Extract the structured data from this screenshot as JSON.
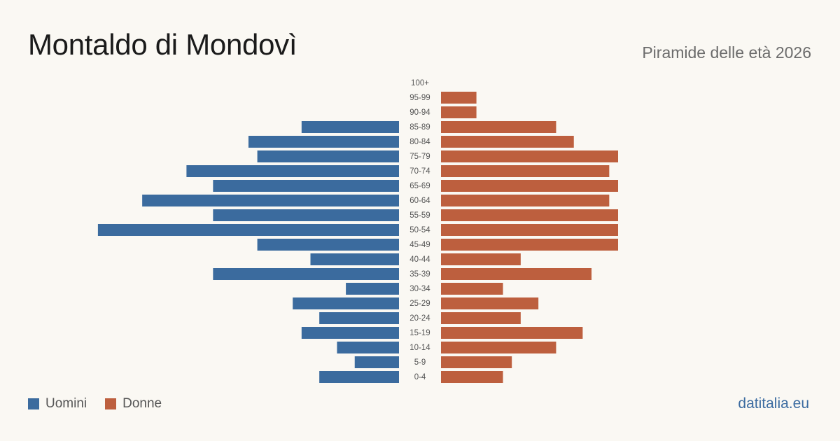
{
  "title": "Montaldo di Mondovì",
  "subtitle": "Piramide delle età 2026",
  "brand": "datitalia.eu",
  "colors": {
    "men": "#3b6b9e",
    "women": "#bd5f3e"
  },
  "chart_data": {
    "type": "bar",
    "orientation": "horizontal-pyramid",
    "title": "Montaldo di Mondovì",
    "subtitle": "Piramide delle età 2026",
    "categories": [
      "100+",
      "95-99",
      "90-94",
      "85-89",
      "80-84",
      "75-79",
      "70-74",
      "65-69",
      "60-64",
      "55-59",
      "50-54",
      "45-49",
      "40-44",
      "35-39",
      "30-34",
      "25-29",
      "20-24",
      "15-19",
      "10-14",
      "5-9",
      "0-4"
    ],
    "series": [
      {
        "name": "Uomini",
        "values": [
          0,
          0,
          0,
          11,
          17,
          16,
          24,
          21,
          29,
          21,
          34,
          16,
          10,
          21,
          6,
          12,
          9,
          11,
          7,
          5,
          9
        ]
      },
      {
        "name": "Donne",
        "values": [
          0,
          4,
          4,
          13,
          15,
          20,
          19,
          20,
          19,
          20,
          20,
          20,
          9,
          17,
          7,
          11,
          9,
          16,
          13,
          8,
          7
        ]
      }
    ],
    "legend": {
      "placement": "bottom-left",
      "entries": [
        "Uomini",
        "Donne"
      ]
    },
    "grid": false
  }
}
